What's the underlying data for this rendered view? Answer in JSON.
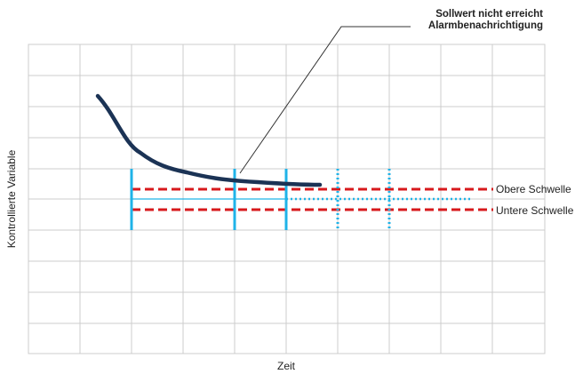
{
  "annotation": {
    "line1": "Sollwert nicht erreicht",
    "line2": "Alarmbenachrichtigung"
  },
  "y_axis_label": "Kontrollierte Variable",
  "x_axis_label": "Zeit",
  "thresholds": {
    "upper_label": "Obere Schwelle",
    "lower_label": "Untere Schwelle"
  },
  "colors": {
    "grid": "#cccccc",
    "curve": "#1b3355",
    "threshold": "#d7191c",
    "marker": "#1fb3e8"
  }
}
